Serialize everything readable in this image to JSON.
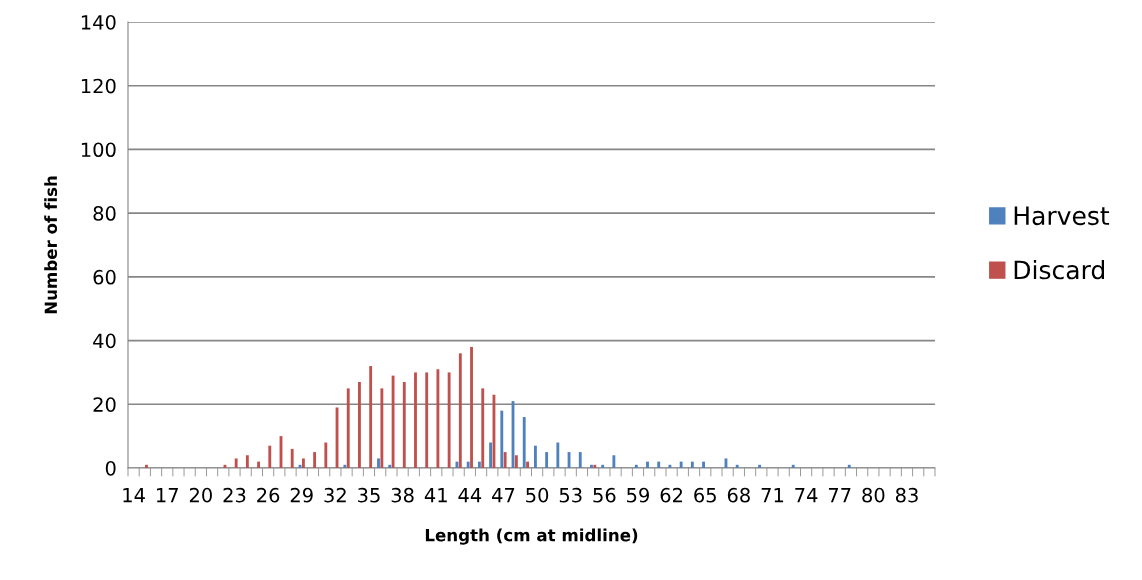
{
  "chart_data": {
    "type": "bar",
    "xlabel": "Length (cm at midline)",
    "ylabel": "Number of fish",
    "categories": [
      "14",
      null,
      null,
      "17",
      null,
      null,
      "20",
      null,
      null,
      "23",
      null,
      null,
      "26",
      null,
      null,
      "29",
      null,
      null,
      "32",
      null,
      null,
      "35",
      null,
      null,
      "38",
      null,
      null,
      "41",
      null,
      null,
      "44",
      null,
      null,
      "47",
      null,
      null,
      "50",
      null,
      null,
      "53",
      null,
      null,
      "56",
      null,
      null,
      "59",
      null,
      null,
      "62",
      null,
      null,
      "65",
      null,
      null,
      "68",
      null,
      null,
      "71",
      null,
      null,
      "74",
      null,
      null,
      "77",
      null,
      null,
      "80",
      null,
      null,
      "83",
      null,
      null
    ],
    "series": [
      {
        "name": "Harvest",
        "color": "#4f81bd",
        "values": [
          0,
          0,
          0,
          0,
          0,
          0,
          0,
          0,
          0,
          0,
          0,
          0,
          0,
          0,
          0,
          1,
          0,
          0,
          0,
          1,
          0,
          0,
          3,
          1,
          0,
          0,
          0,
          0,
          0,
          2,
          2,
          2,
          8,
          18,
          21,
          16,
          7,
          5,
          8,
          5,
          5,
          1,
          1,
          4,
          0,
          1,
          2,
          2,
          1,
          2,
          2,
          2,
          0,
          3,
          1,
          0,
          1,
          0,
          0,
          1,
          0,
          0,
          0,
          0,
          1,
          0,
          0,
          0,
          0,
          0,
          0,
          0
        ]
      },
      {
        "name": "Discard",
        "color": "#c0504d",
        "values": [
          0,
          1,
          0,
          0,
          0,
          0,
          0,
          0,
          1,
          3,
          4,
          2,
          7,
          10,
          6,
          3,
          5,
          8,
          19,
          25,
          27,
          32,
          25,
          29,
          27,
          30,
          30,
          31,
          30,
          36,
          38,
          25,
          23,
          5,
          4,
          2,
          0,
          0,
          0,
          0,
          0,
          1,
          0,
          0,
          0,
          0,
          0,
          0,
          0,
          0,
          0,
          0,
          0,
          0,
          0,
          0,
          0,
          0,
          0,
          0,
          0,
          0,
          0,
          0,
          0,
          0,
          0,
          0,
          0,
          0,
          0,
          0
        ]
      }
    ],
    "ylim": [
      0,
      140
    ],
    "yticks": [
      0,
      20,
      40,
      60,
      80,
      100,
      120,
      140
    ],
    "grid": "y",
    "legend": "right"
  }
}
